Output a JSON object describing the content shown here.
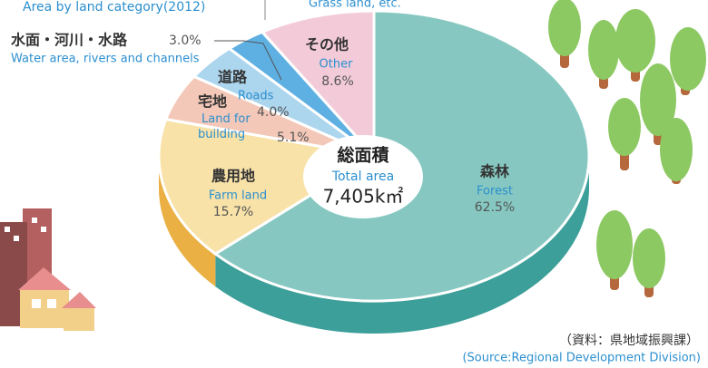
{
  "chart_data": {
    "type": "pie",
    "title": "Area by land category(2012)",
    "categories": [
      "Forest",
      "Farm land",
      "Land for building",
      "Roads",
      "Water area, rivers and channels",
      "Other"
    ],
    "categories_ja": [
      "森林",
      "農用地",
      "宅地",
      "道路",
      "水面・河川・水路",
      "その他"
    ],
    "values": [
      62.5,
      15.7,
      5.1,
      4.0,
      3.0,
      8.6
    ],
    "value_labels": [
      "62.5%",
      "15.7%",
      "5.1%",
      "4.0%",
      "3.0%",
      "8.6%"
    ],
    "colors": [
      "#86c8c1",
      "#f8e2a8",
      "#f4c8b8",
      "#acd5ee",
      "#5fb0e2",
      "#f3cbd8"
    ],
    "side_colors": [
      "#3c9f99",
      "#eab043",
      "#dd9a85",
      "#6fb2dc",
      "#2f8fcc",
      "#d996ab"
    ],
    "other_note": "Grass land, etc.",
    "center_ja": "総面積",
    "center_en": "Total area",
    "center_value": "7,405k㎡",
    "source_ja": "（資料：県地域振興課）",
    "source_en": "(Source:Regional Development Division)"
  }
}
